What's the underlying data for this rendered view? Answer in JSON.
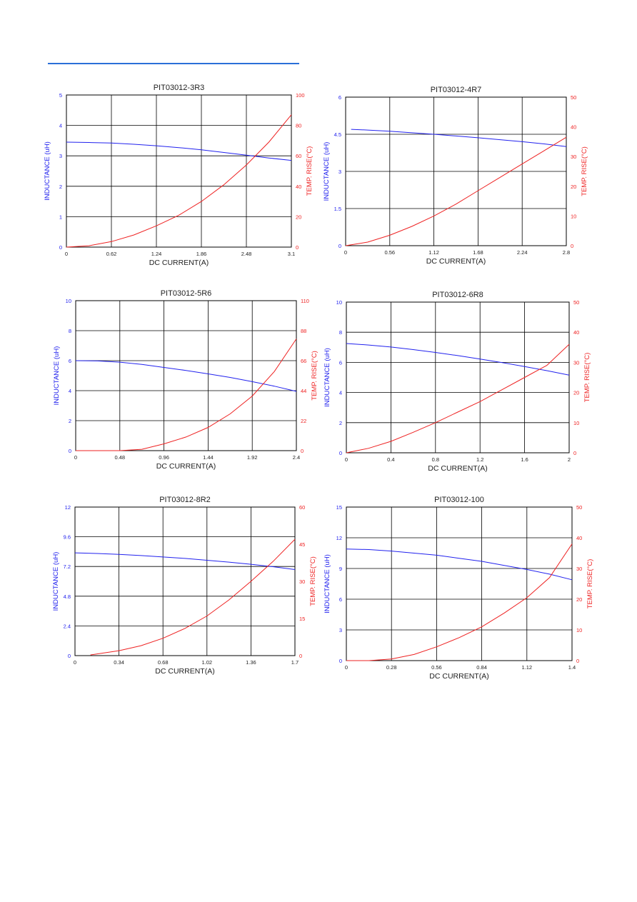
{
  "colors": {
    "inductance": "#2222ee",
    "temperature": "#ee2222",
    "grid": "#000000",
    "header_rule": "#2a6fd8"
  },
  "charts": [
    {
      "title": "PIT03012-3R3",
      "xlabel": "DC CURRENT(A)",
      "ylabel_left": "INDUCTANCE (uH)",
      "ylabel_right": "TEMP. RISE(°C)",
      "x_ticks": [
        "0",
        "0.62",
        "1.24",
        "1.86",
        "2.48",
        "3.1"
      ],
      "y_left_ticks": [
        "0",
        "1",
        "2",
        "3",
        "4",
        "5"
      ],
      "y_right_ticks": [
        "0",
        "20",
        "40",
        "60",
        "80",
        "100"
      ]
    },
    {
      "title": "PIT03012-4R7",
      "xlabel": "DC CURRENT(A)",
      "ylabel_left": "INDUCTANCE (uH)",
      "ylabel_right": "TEMP. RISE(°C)",
      "x_ticks": [
        "0",
        "0.56",
        "1.12",
        "1.68",
        "2.24",
        "2.8"
      ],
      "y_left_ticks": [
        "0",
        "1.5",
        "3",
        "4.5",
        "6"
      ],
      "y_right_ticks": [
        "0",
        "10",
        "20",
        "30",
        "40",
        "50"
      ]
    },
    {
      "title": "PIT03012-5R6",
      "xlabel": "DC CURRENT(A)",
      "ylabel_left": "INDUCTANCE (uH)",
      "ylabel_right": "TEMP. RISE(°C)",
      "x_ticks": [
        "0",
        "0.48",
        "0.96",
        "1.44",
        "1.92",
        "2.4"
      ],
      "y_left_ticks": [
        "0",
        "2",
        "4",
        "6",
        "8",
        "10"
      ],
      "y_right_ticks": [
        "0",
        "22",
        "44",
        "66",
        "88",
        "110"
      ]
    },
    {
      "title": "PIT03012-6R8",
      "xlabel": "DC CURRENT(A)",
      "ylabel_left": "INDUCTANCE (uH)",
      "ylabel_right": "TEMP. RISE(°C)",
      "x_ticks": [
        "0",
        "0.4",
        "0.8",
        "1.2",
        "1.6",
        "2"
      ],
      "y_left_ticks": [
        "0",
        "2",
        "4",
        "6",
        "8",
        "10"
      ],
      "y_right_ticks": [
        "0",
        "10",
        "20",
        "30",
        "40",
        "50"
      ]
    },
    {
      "title": "PIT03012-8R2",
      "xlabel": "DC CURRENT(A)",
      "ylabel_left": "INDUCTANCE (uH)",
      "ylabel_right": "TEMP. RISE(°C)",
      "x_ticks": [
        "0",
        "0.34",
        "0.68",
        "1.02",
        "1.36",
        "1.7"
      ],
      "y_left_ticks": [
        "0",
        "2.4",
        "4.8",
        "7.2",
        "9.6",
        "12"
      ],
      "y_right_ticks": [
        "0",
        "15",
        "30",
        "45",
        "60"
      ]
    },
    {
      "title": "PIT03012-100",
      "xlabel": "DC CURRENT(A)",
      "ylabel_left": "INDUCTANCE (uH)",
      "ylabel_right": "TEMP. RISE(°C)",
      "x_ticks": [
        "0",
        "0.28",
        "0.56",
        "0.84",
        "1.12",
        "1.4"
      ],
      "y_left_ticks": [
        "0",
        "3",
        "6",
        "9",
        "12",
        "15"
      ],
      "y_right_ticks": [
        "0",
        "10",
        "20",
        "30",
        "40",
        "50"
      ]
    }
  ],
  "chart_data": [
    {
      "type": "line",
      "title": "PIT03012-3R3",
      "xlabel": "DC CURRENT(A)",
      "ylabel": "INDUCTANCE (uH)",
      "y2label": "TEMP. RISE(°C)",
      "xlim": [
        0,
        3.1
      ],
      "ylim": [
        0,
        5
      ],
      "y2lim": [
        0,
        100
      ],
      "grid": true,
      "series": [
        {
          "axis": "left",
          "x": [
            0,
            0.31,
            0.62,
            0.93,
            1.24,
            1.55,
            1.86,
            2.17,
            2.48,
            2.79,
            3.1
          ],
          "y": [
            3.45,
            3.44,
            3.42,
            3.38,
            3.33,
            3.27,
            3.2,
            3.11,
            3.02,
            2.93,
            2.85
          ]
        },
        {
          "axis": "right",
          "x": [
            0,
            0.31,
            0.62,
            0.93,
            1.24,
            1.55,
            1.86,
            2.17,
            2.48,
            2.79,
            3.1
          ],
          "y": [
            0,
            0.9,
            3.6,
            8,
            14,
            21,
            30,
            41,
            54,
            69,
            87
          ]
        }
      ]
    },
    {
      "type": "line",
      "title": "PIT03012-4R7",
      "xlabel": "DC CURRENT(A)",
      "ylabel": "INDUCTANCE (uH)",
      "y2label": "TEMP. RISE(°C)",
      "xlim": [
        0,
        2.8
      ],
      "ylim": [
        0,
        6
      ],
      "y2lim": [
        0,
        50
      ],
      "grid": true,
      "series": [
        {
          "axis": "left",
          "x": [
            0.07,
            0.28,
            0.56,
            0.84,
            1.12,
            1.4,
            1.68,
            1.96,
            2.24,
            2.52,
            2.8
          ],
          "y": [
            4.7,
            4.67,
            4.62,
            4.56,
            4.5,
            4.43,
            4.36,
            4.28,
            4.2,
            4.11,
            4.0
          ]
        },
        {
          "axis": "right",
          "x": [
            0,
            0.28,
            0.56,
            0.84,
            1.12,
            1.4,
            1.68,
            1.96,
            2.24,
            2.52,
            2.8
          ],
          "y": [
            0,
            1.2,
            3.5,
            6.5,
            10,
            14,
            18.5,
            23,
            27.5,
            32,
            36.5
          ]
        }
      ]
    },
    {
      "type": "line",
      "title": "PIT03012-5R6",
      "xlabel": "DC CURRENT(A)",
      "ylabel": "INDUCTANCE (uH)",
      "y2label": "TEMP. RISE(°C)",
      "xlim": [
        0,
        2.4
      ],
      "ylim": [
        0,
        10
      ],
      "y2lim": [
        0,
        110
      ],
      "grid": true,
      "series": [
        {
          "axis": "left",
          "x": [
            0,
            0.24,
            0.48,
            0.72,
            0.96,
            1.2,
            1.44,
            1.68,
            1.92,
            2.16,
            2.4
          ],
          "y": [
            6.0,
            5.98,
            5.9,
            5.75,
            5.55,
            5.35,
            5.12,
            4.88,
            4.6,
            4.3,
            3.95
          ]
        },
        {
          "axis": "right",
          "x": [
            0,
            0.24,
            0.48,
            0.72,
            0.96,
            1.2,
            1.44,
            1.68,
            1.92,
            2.16,
            2.4
          ],
          "y": [
            0,
            0,
            0,
            1,
            5,
            10,
            17,
            27,
            40,
            58,
            82
          ]
        }
      ]
    },
    {
      "type": "line",
      "title": "PIT03012-6R8",
      "xlabel": "DC CURRENT(A)",
      "ylabel": "INDUCTANCE (uH)",
      "y2label": "TEMP. RISE(°C)",
      "xlim": [
        0,
        2
      ],
      "ylim": [
        0,
        10
      ],
      "y2lim": [
        0,
        50
      ],
      "grid": true,
      "series": [
        {
          "axis": "left",
          "x": [
            0,
            0.2,
            0.4,
            0.6,
            0.8,
            1.0,
            1.2,
            1.4,
            1.6,
            1.8,
            2.0
          ],
          "y": [
            7.25,
            7.15,
            7.02,
            6.85,
            6.66,
            6.45,
            6.22,
            5.98,
            5.72,
            5.45,
            5.15
          ]
        },
        {
          "axis": "right",
          "x": [
            0,
            0.2,
            0.4,
            0.6,
            0.8,
            1.0,
            1.2,
            1.4,
            1.6,
            1.8,
            2.0
          ],
          "y": [
            0,
            1.5,
            3.8,
            6.8,
            10,
            13.5,
            17,
            21,
            25,
            29,
            36
          ]
        }
      ]
    },
    {
      "type": "line",
      "title": "PIT03012-8R2",
      "xlabel": "DC CURRENT(A)",
      "ylabel": "INDUCTANCE (uH)",
      "y2label": "TEMP. RISE(°C)",
      "xlim": [
        0,
        1.7
      ],
      "ylim": [
        0,
        12
      ],
      "y2lim": [
        0,
        60
      ],
      "grid": true,
      "series": [
        {
          "axis": "left",
          "x": [
            0,
            0.17,
            0.34,
            0.51,
            0.68,
            0.85,
            1.02,
            1.19,
            1.36,
            1.53,
            1.7
          ],
          "y": [
            8.3,
            8.25,
            8.18,
            8.08,
            7.97,
            7.85,
            7.7,
            7.55,
            7.38,
            7.18,
            6.95
          ]
        },
        {
          "axis": "right",
          "x": [
            0.12,
            0.34,
            0.51,
            0.68,
            0.85,
            1.02,
            1.19,
            1.36,
            1.53,
            1.7
          ],
          "y": [
            0.3,
            2,
            4,
            7,
            11,
            16,
            22.5,
            30,
            38,
            47
          ]
        }
      ]
    },
    {
      "type": "line",
      "title": "PIT03012-100",
      "xlabel": "DC CURRENT(A)",
      "ylabel": "INDUCTANCE (uH)",
      "y2label": "TEMP. RISE(°C)",
      "xlim": [
        0,
        1.4
      ],
      "ylim": [
        0,
        15
      ],
      "y2lim": [
        0,
        50
      ],
      "grid": true,
      "series": [
        {
          "axis": "left",
          "x": [
            0,
            0.14,
            0.28,
            0.42,
            0.56,
            0.7,
            0.84,
            0.98,
            1.12,
            1.26,
            1.4
          ],
          "y": [
            10.9,
            10.85,
            10.7,
            10.5,
            10.3,
            10.0,
            9.7,
            9.3,
            8.9,
            8.45,
            7.9
          ]
        },
        {
          "axis": "right",
          "x": [
            0,
            0.14,
            0.28,
            0.42,
            0.56,
            0.7,
            0.84,
            0.98,
            1.12,
            1.26,
            1.4
          ],
          "y": [
            0,
            0,
            0.5,
            2,
            4.5,
            7.5,
            11,
            15.5,
            20.5,
            27,
            38
          ]
        }
      ]
    }
  ]
}
